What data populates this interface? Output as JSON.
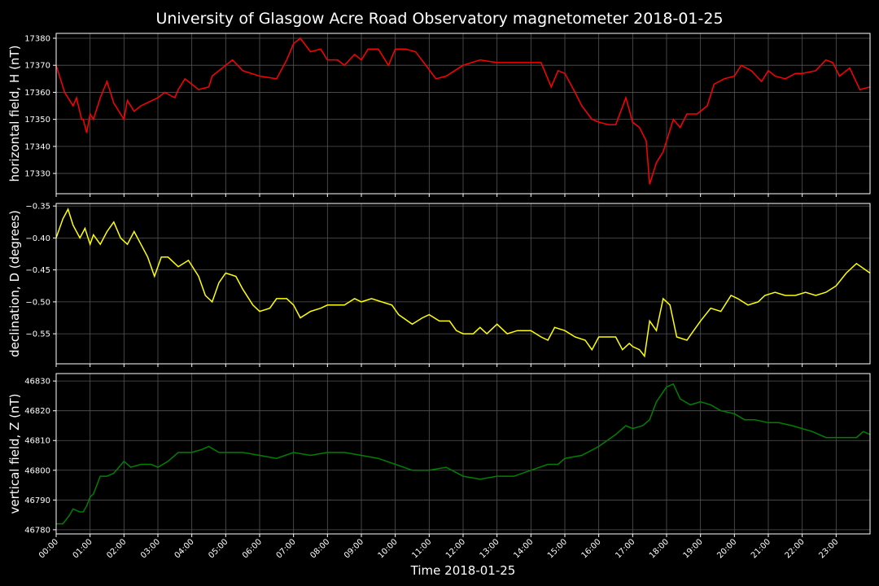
{
  "chart_data": [
    {
      "type": "line",
      "title": "University of Glasgow Acre Road Observatory magnetometer 2018-01-25",
      "ylabel": "horizontal field, H (nT)",
      "x": [
        0,
        0.25,
        0.5,
        0.6,
        0.75,
        0.8,
        0.9,
        1.0,
        1.1,
        1.3,
        1.5,
        1.7,
        2.0,
        2.1,
        2.3,
        2.5,
        3.0,
        3.2,
        3.5,
        3.6,
        3.8,
        4.0,
        4.2,
        4.5,
        4.6,
        5.0,
        5.2,
        5.5,
        6.0,
        6.5,
        6.8,
        7.0,
        7.2,
        7.5,
        7.8,
        8.0,
        8.3,
        8.5,
        8.8,
        9.0,
        9.2,
        9.5,
        9.8,
        10.0,
        10.3,
        10.6,
        10.9,
        11.2,
        11.5,
        12.0,
        12.5,
        13.0,
        13.5,
        14.0,
        14.3,
        14.6,
        14.8,
        15.0,
        15.3,
        15.5,
        15.8,
        16.0,
        16.3,
        16.5,
        16.8,
        17.0,
        17.2,
        17.4,
        17.5,
        17.7,
        17.9,
        18.0,
        18.2,
        18.4,
        18.6,
        18.9,
        19.2,
        19.4,
        19.7,
        20.0,
        20.2,
        20.5,
        20.8,
        21.0,
        21.2,
        21.5,
        21.8,
        22.0,
        22.4,
        22.7,
        22.9,
        23.1,
        23.4,
        23.7,
        24.0
      ],
      "series": [
        {
          "color": "#ff0000",
          "values": [
            17370,
            17360,
            17355,
            17358,
            17350,
            17350,
            17345,
            17352,
            17350,
            17358,
            17364,
            17356,
            17350,
            17357,
            17353,
            17355,
            17358,
            17360,
            17358,
            17361,
            17365,
            17363,
            17361,
            17362,
            17366,
            17370,
            17372,
            17368,
            17366,
            17365,
            17372,
            17378,
            17380,
            17375,
            17376,
            17372,
            17372,
            17370,
            17374,
            17372,
            17376,
            17376,
            17370,
            17376,
            17376,
            17375,
            17370,
            17365,
            17366,
            17370,
            17372,
            17371,
            17371,
            17371,
            17371,
            17362,
            17368,
            17367,
            17360,
            17355,
            17350,
            17349,
            17348,
            17348,
            17358,
            17349,
            17347,
            17342,
            17326,
            17334,
            17338,
            17342,
            17350,
            17347,
            17352,
            17352,
            17355,
            17363,
            17365,
            17366,
            17370,
            17368,
            17364,
            17368,
            17366,
            17365,
            17367,
            17367,
            17368,
            17372,
            17371,
            17366,
            17369,
            17361,
            17362
          ]
        }
      ],
      "xlim": [
        0,
        24
      ],
      "ylim": [
        17322.5,
        17381.8
      ],
      "xticks": [
        0,
        1,
        2,
        3,
        4,
        5,
        6,
        7,
        8,
        9,
        10,
        11,
        12,
        13,
        14,
        15,
        16,
        17,
        18,
        19,
        20,
        21,
        22,
        23
      ],
      "yticks": [
        17330,
        17340,
        17350,
        17360,
        17370,
        17380
      ],
      "grid": true
    },
    {
      "type": "line",
      "ylabel": "declination, D (degrees)",
      "x": [
        0,
        0.2,
        0.35,
        0.5,
        0.7,
        0.85,
        1.0,
        1.1,
        1.3,
        1.5,
        1.7,
        1.9,
        2.1,
        2.3,
        2.5,
        2.7,
        2.9,
        3.1,
        3.3,
        3.6,
        3.9,
        4.2,
        4.4,
        4.6,
        4.8,
        5.0,
        5.3,
        5.5,
        5.8,
        6.0,
        6.3,
        6.5,
        6.8,
        7.0,
        7.2,
        7.5,
        7.8,
        8.0,
        8.3,
        8.5,
        8.8,
        9.0,
        9.3,
        9.6,
        9.9,
        10.1,
        10.5,
        10.8,
        11.0,
        11.3,
        11.6,
        11.8,
        12.0,
        12.3,
        12.5,
        12.7,
        13.0,
        13.3,
        13.6,
        14.0,
        14.3,
        14.5,
        14.7,
        15.0,
        15.3,
        15.6,
        15.8,
        16.0,
        16.3,
        16.5,
        16.7,
        16.9,
        17.0,
        17.2,
        17.35,
        17.5,
        17.7,
        17.9,
        18.1,
        18.3,
        18.6,
        18.8,
        19.0,
        19.3,
        19.6,
        19.9,
        20.1,
        20.4,
        20.7,
        20.9,
        21.2,
        21.5,
        21.8,
        22.1,
        22.4,
        22.7,
        23.0,
        23.3,
        23.6,
        24.0
      ],
      "series": [
        {
          "color": "#ffff00",
          "values": [
            -0.4,
            -0.37,
            -0.355,
            -0.38,
            -0.4,
            -0.385,
            -0.41,
            -0.395,
            -0.41,
            -0.39,
            -0.375,
            -0.4,
            -0.41,
            -0.39,
            -0.41,
            -0.43,
            -0.46,
            -0.43,
            -0.43,
            -0.445,
            -0.435,
            -0.46,
            -0.49,
            -0.5,
            -0.47,
            -0.455,
            -0.46,
            -0.48,
            -0.505,
            -0.515,
            -0.51,
            -0.495,
            -0.495,
            -0.505,
            -0.525,
            -0.515,
            -0.51,
            -0.505,
            -0.505,
            -0.505,
            -0.495,
            -0.5,
            -0.495,
            -0.5,
            -0.505,
            -0.52,
            -0.535,
            -0.525,
            -0.52,
            -0.53,
            -0.53,
            -0.545,
            -0.55,
            -0.55,
            -0.54,
            -0.55,
            -0.535,
            -0.55,
            -0.545,
            -0.545,
            -0.555,
            -0.56,
            -0.54,
            -0.545,
            -0.555,
            -0.56,
            -0.575,
            -0.555,
            -0.555,
            -0.555,
            -0.575,
            -0.565,
            -0.57,
            -0.575,
            -0.585,
            -0.53,
            -0.545,
            -0.495,
            -0.505,
            -0.555,
            -0.56,
            -0.545,
            -0.53,
            -0.51,
            -0.515,
            -0.49,
            -0.495,
            -0.505,
            -0.5,
            -0.49,
            -0.485,
            -0.49,
            -0.49,
            -0.485,
            -0.49,
            -0.485,
            -0.475,
            -0.455,
            -0.44,
            -0.455
          ]
        }
      ],
      "xlim": [
        0,
        24
      ],
      "ylim": [
        -0.597,
        -0.346
      ],
      "xticks": [
        0,
        1,
        2,
        3,
        4,
        5,
        6,
        7,
        8,
        9,
        10,
        11,
        12,
        13,
        14,
        15,
        16,
        17,
        18,
        19,
        20,
        21,
        22,
        23
      ],
      "yticks": [
        {
          "value": -0.55,
          "label": "−0.55"
        },
        {
          "value": -0.5,
          "label": "−0.50"
        },
        {
          "value": -0.45,
          "label": "−0.45"
        },
        {
          "value": -0.4,
          "label": "−0.40"
        },
        {
          "value": -0.35,
          "label": "−0.35"
        }
      ],
      "grid": true
    },
    {
      "type": "line",
      "ylabel": "vertical field, Z (nT)",
      "xlabel": "Time 2018-01-25",
      "x": [
        0,
        0.2,
        0.4,
        0.5,
        0.7,
        0.8,
        0.9,
        1.0,
        1.1,
        1.3,
        1.5,
        1.7,
        2.0,
        2.2,
        2.5,
        2.8,
        3.0,
        3.3,
        3.6,
        3.8,
        4.0,
        4.3,
        4.5,
        4.8,
        5.0,
        5.5,
        6.0,
        6.5,
        7.0,
        7.5,
        8.0,
        8.5,
        9.0,
        9.5,
        10.0,
        10.5,
        11.0,
        11.5,
        12.0,
        12.5,
        13.0,
        13.5,
        14.0,
        14.5,
        14.8,
        15.0,
        15.5,
        16.0,
        16.5,
        16.8,
        17.0,
        17.3,
        17.5,
        17.7,
        18.0,
        18.2,
        18.4,
        18.7,
        19.0,
        19.3,
        19.6,
        20.0,
        20.3,
        20.6,
        21.0,
        21.3,
        21.7,
        22.0,
        22.3,
        22.7,
        23.0,
        23.3,
        23.6,
        23.8,
        24.0
      ],
      "series": [
        {
          "color": "#008000",
          "values": [
            46782,
            46782,
            46785,
            46787,
            46786,
            46786,
            46788,
            46791,
            46792,
            46798,
            46798,
            46799,
            46803,
            46801,
            46802,
            46802,
            46801,
            46803,
            46806,
            46806,
            46806,
            46807,
            46808,
            46806,
            46806,
            46806,
            46805,
            46804,
            46806,
            46805,
            46806,
            46806,
            46805,
            46804,
            46802,
            46800,
            46800,
            46801,
            46798,
            46797,
            46798,
            46798,
            46800,
            46802,
            46802,
            46804,
            46805,
            46808,
            46812,
            46815,
            46814,
            46815,
            46817,
            46823,
            46828,
            46829,
            46824,
            46822,
            46823,
            46822,
            46820,
            46819,
            46817,
            46817,
            46816,
            46816,
            46815,
            46814,
            46813,
            46811,
            46811,
            46811,
            46811,
            46813,
            46812
          ]
        }
      ],
      "xlim": [
        0,
        24
      ],
      "ylim": [
        46778.6,
        46832.5
      ],
      "xticks": [
        {
          "value": 0,
          "label": "00:00"
        },
        {
          "value": 1,
          "label": "01:00"
        },
        {
          "value": 2,
          "label": "02:00"
        },
        {
          "value": 3,
          "label": "03:00"
        },
        {
          "value": 4,
          "label": "04:00"
        },
        {
          "value": 5,
          "label": "05:00"
        },
        {
          "value": 6,
          "label": "06:00"
        },
        {
          "value": 7,
          "label": "07:00"
        },
        {
          "value": 8,
          "label": "08:00"
        },
        {
          "value": 9,
          "label": "09:00"
        },
        {
          "value": 10,
          "label": "10:00"
        },
        {
          "value": 11,
          "label": "11:00"
        },
        {
          "value": 12,
          "label": "12:00"
        },
        {
          "value": 13,
          "label": "13:00"
        },
        {
          "value": 14,
          "label": "14:00"
        },
        {
          "value": 15,
          "label": "15:00"
        },
        {
          "value": 16,
          "label": "16:00"
        },
        {
          "value": 17,
          "label": "17:00"
        },
        {
          "value": 18,
          "label": "18:00"
        },
        {
          "value": 19,
          "label": "19:00"
        },
        {
          "value": 20,
          "label": "20:00"
        },
        {
          "value": 21,
          "label": "21:00"
        },
        {
          "value": 22,
          "label": "22:00"
        },
        {
          "value": 23,
          "label": "23:00"
        }
      ],
      "yticks": [
        46780,
        46790,
        46800,
        46810,
        46820,
        46830
      ],
      "grid": true
    }
  ]
}
